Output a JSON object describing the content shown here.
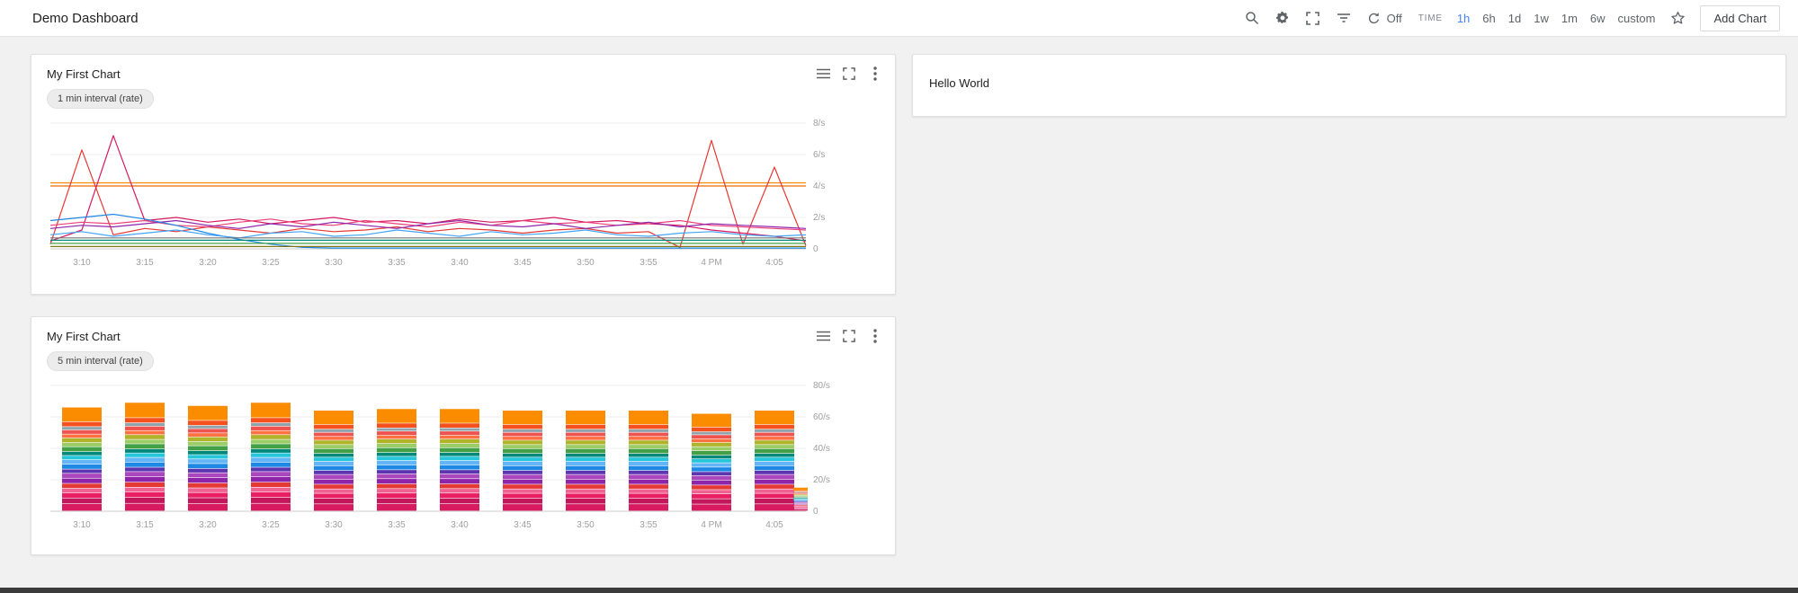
{
  "header": {
    "title": "Demo Dashboard",
    "refresh_label": "Off",
    "time_label": "TIME",
    "ranges": [
      "1h",
      "6h",
      "1d",
      "1w",
      "1m",
      "6w",
      "custom"
    ],
    "selected_range": "1h",
    "add_chart_label": "Add Chart"
  },
  "colors": {
    "accent": "#4285f4"
  },
  "chart1": {
    "title": "My First Chart",
    "chip": "1 min interval (rate)"
  },
  "chart2": {
    "title": "My First Chart",
    "chip": "5 min interval (rate)"
  },
  "hello_card": {
    "text": "Hello World"
  },
  "chart_data": [
    {
      "type": "line",
      "title": "My First Chart",
      "subtitle": "1 min interval (rate)",
      "x_ticks": [
        "3:10",
        "3:15",
        "3:20",
        "3:25",
        "3:30",
        "3:35",
        "3:40",
        "3:45",
        "3:50",
        "3:55",
        "4 PM",
        "4:05"
      ],
      "y_ticks": [
        {
          "v": 0,
          "label": "0"
        },
        {
          "v": 2,
          "label": "2/s"
        },
        {
          "v": 4,
          "label": "4/s"
        },
        {
          "v": 6,
          "label": "6/s"
        },
        {
          "v": 8,
          "label": "8/s"
        }
      ],
      "y_max": 8,
      "grid": true,
      "legend": "hidden",
      "series": [
        {
          "color": "#fb8c00",
          "values": [
            4.2,
            4.2,
            4.2,
            4.2,
            4.2,
            4.2,
            4.2,
            4.2,
            4.2,
            4.2,
            4.2,
            4.2,
            4.2,
            4.2,
            4.2,
            4.2,
            4.2,
            4.2,
            4.2,
            4.2,
            4.2,
            4.2,
            4.2,
            4.2,
            4.2
          ]
        },
        {
          "color": "#ef6c00",
          "values": [
            4.0,
            4.0,
            4.0,
            4.0,
            4.0,
            4.0,
            4.0,
            4.0,
            4.0,
            4.0,
            4.0,
            4.0,
            4.0,
            4.0,
            4.0,
            4.0,
            4.0,
            4.0,
            4.0,
            4.0,
            4.0,
            4.0,
            4.0,
            4.0,
            4.0
          ]
        },
        {
          "color": "#e53935",
          "values": [
            0.3,
            6.3,
            0.9,
            1.3,
            1.1,
            1.4,
            1.2,
            1.0,
            1.3,
            1.1,
            1.2,
            1.4,
            1.1,
            1.3,
            1.2,
            1.0,
            1.2,
            1.3,
            1.0,
            1.1,
            0.1,
            6.9,
            0.3,
            5.2,
            0.2
          ]
        },
        {
          "color": "#d81b60",
          "values": [
            0.5,
            1.2,
            7.2,
            1.8,
            2.0,
            1.7,
            1.9,
            1.6,
            1.8,
            2.0,
            1.7,
            1.8,
            1.6,
            1.9,
            1.7,
            1.8,
            2.0,
            1.7,
            1.8,
            1.6,
            1.5,
            1.2,
            1.0,
            0.8,
            0.5
          ]
        },
        {
          "color": "#ec407a",
          "values": [
            1.5,
            1.7,
            1.6,
            1.8,
            1.5,
            1.4,
            1.7,
            1.9,
            1.6,
            1.5,
            1.8,
            1.6,
            1.4,
            1.7,
            1.5,
            1.8,
            1.6,
            1.7,
            1.5,
            1.6,
            1.8,
            1.5,
            1.4,
            1.3,
            1.2
          ]
        },
        {
          "color": "#8e24aa",
          "values": [
            1.3,
            1.5,
            1.4,
            1.6,
            1.8,
            1.5,
            1.3,
            1.6,
            1.4,
            1.7,
            1.5,
            1.3,
            1.6,
            1.8,
            1.5,
            1.4,
            1.6,
            1.3,
            1.5,
            1.7,
            1.4,
            1.6,
            1.5,
            1.4,
            1.3
          ]
        },
        {
          "color": "#1e88e5",
          "values": [
            1.8,
            2.0,
            2.2,
            1.9,
            1.5,
            1.0,
            0.6,
            0.3,
            0.1,
            0.05,
            0.05,
            0.05,
            0.05,
            0.05,
            0.05,
            0.05,
            0.05,
            0.05,
            0.05,
            0.05,
            0.05,
            0.05,
            0.05,
            0.05,
            0.05
          ]
        },
        {
          "color": "#42a5f5",
          "values": [
            0.9,
            1.1,
            0.8,
            1.0,
            1.2,
            0.9,
            0.7,
            1.0,
            1.1,
            0.8,
            0.9,
            1.2,
            1.0,
            0.8,
            1.1,
            0.9,
            1.0,
            1.2,
            0.9,
            0.8,
            1.0,
            1.1,
            0.9,
            0.8,
            0.9
          ]
        },
        {
          "color": "#00897b",
          "values": [
            0.55,
            0.55,
            0.55,
            0.55,
            0.55,
            0.55,
            0.55,
            0.55,
            0.55,
            0.55,
            0.55,
            0.55,
            0.55,
            0.55,
            0.55,
            0.55,
            0.55,
            0.55,
            0.55,
            0.55,
            0.55,
            0.55,
            0.55,
            0.55,
            0.55
          ]
        },
        {
          "color": "#757575",
          "values": [
            0.7,
            0.7,
            0.7,
            0.7,
            0.7,
            0.7,
            0.7,
            0.7,
            0.7,
            0.7,
            0.7,
            0.7,
            0.7,
            0.7,
            0.7,
            0.7,
            0.7,
            0.7,
            0.7,
            0.7,
            0.7,
            0.7,
            0.7,
            0.7,
            0.7
          ]
        },
        {
          "color": "#43a047",
          "values": [
            0.35,
            0.35,
            0.35,
            0.35,
            0.35,
            0.35,
            0.35,
            0.35,
            0.35,
            0.35,
            0.35,
            0.35,
            0.35,
            0.35,
            0.35,
            0.35,
            0.35,
            0.35,
            0.35,
            0.35,
            0.35,
            0.35,
            0.35,
            0.35,
            0.35
          ]
        },
        {
          "color": "#827717",
          "values": [
            0.15,
            0.15,
            0.15,
            0.15,
            0.15,
            0.15,
            0.15,
            0.15,
            0.15,
            0.15,
            0.15,
            0.15,
            0.15,
            0.15,
            0.15,
            0.15,
            0.15,
            0.15,
            0.15,
            0.15,
            0.15,
            0.15,
            0.15,
            0.15,
            0.15
          ]
        }
      ]
    },
    {
      "type": "bar",
      "stacked": true,
      "title": "My First Chart",
      "subtitle": "5 min interval (rate)",
      "x_ticks": [
        "3:10",
        "3:15",
        "3:20",
        "3:25",
        "3:30",
        "3:35",
        "3:40",
        "3:45",
        "3:50",
        "3:55",
        "4 PM",
        "4:05"
      ],
      "y_ticks": [
        {
          "v": 0,
          "label": "0"
        },
        {
          "v": 20,
          "label": "20/s"
        },
        {
          "v": 40,
          "label": "40/s"
        },
        {
          "v": 60,
          "label": "60/s"
        },
        {
          "v": 80,
          "label": "80/s"
        }
      ],
      "y_max": 80,
      "grid": true,
      "legend": "hidden",
      "bar_totals": [
        66,
        69,
        67,
        69,
        64,
        65,
        65,
        64,
        64,
        64,
        62,
        64
      ],
      "side_bar_total": 15,
      "segments": [
        {
          "color": "#d81b60",
          "v": 4.5
        },
        {
          "color": "#c2185b",
          "v": 3.5
        },
        {
          "color": "#e91e63",
          "v": 3.2
        },
        {
          "color": "#f06292",
          "v": 2.8
        },
        {
          "color": "#e53935",
          "v": 3.0
        },
        {
          "color": "#8e24aa",
          "v": 3.2
        },
        {
          "color": "#ab47bc",
          "v": 3.0
        },
        {
          "color": "#5e35b1",
          "v": 2.6
        },
        {
          "color": "#1e88e5",
          "v": 3.0
        },
        {
          "color": "#64b5f6",
          "v": 2.8
        },
        {
          "color": "#26c6da",
          "v": 2.6
        },
        {
          "color": "#00897b",
          "v": 2.4
        },
        {
          "color": "#43a047",
          "v": 3.0
        },
        {
          "color": "#9ccc65",
          "v": 2.6
        },
        {
          "color": "#afb42b",
          "v": 2.8
        },
        {
          "color": "#ff7043",
          "v": 2.4
        },
        {
          "color": "#ef5350",
          "v": 2.6
        },
        {
          "color": "#90a4ae",
          "v": 2.0
        },
        {
          "color": "#f4511e",
          "v": 3.0
        },
        {
          "color": "#fb8c00",
          "v": 9.0
        }
      ]
    }
  ]
}
